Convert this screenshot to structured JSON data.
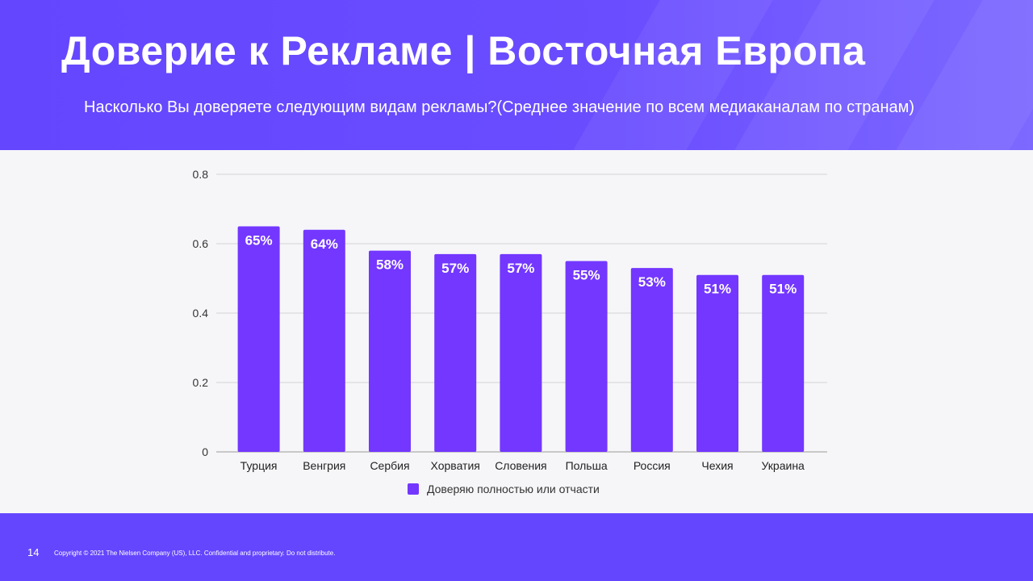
{
  "header": {
    "title": "Доверие к Рекламе  | Восточная Европа",
    "subtitle": "Насколько Вы доверяете следующим видам рекламы?(Среднее значение по всем медиаканалам по странам)"
  },
  "footer": {
    "page_number": "14",
    "copyright": "Copyright © 2021 The Nielsen Company (US), LLC. Confidential and proprietary. Do not distribute."
  },
  "colors": {
    "bar": "#7337ff",
    "header": "#6446ff"
  },
  "chart_data": {
    "type": "bar",
    "categories": [
      "Турция",
      "Венгрия",
      "Сербия",
      "Хорватия",
      "Словения",
      "Польша",
      "Россия",
      "Чехия",
      "Украина"
    ],
    "values": [
      0.65,
      0.64,
      0.58,
      0.57,
      0.57,
      0.55,
      0.53,
      0.51,
      0.51
    ],
    "data_labels": [
      "65%",
      "64%",
      "58%",
      "57%",
      "57%",
      "55%",
      "53%",
      "51%",
      "51%"
    ],
    "yticks": [
      "0",
      "0.2",
      "0.4",
      "0.6",
      "0.8"
    ],
    "ylim": [
      0,
      0.8
    ],
    "legend": {
      "label": "Доверяю полностью или отчасти",
      "placement": "bottom"
    },
    "grid": true
  }
}
